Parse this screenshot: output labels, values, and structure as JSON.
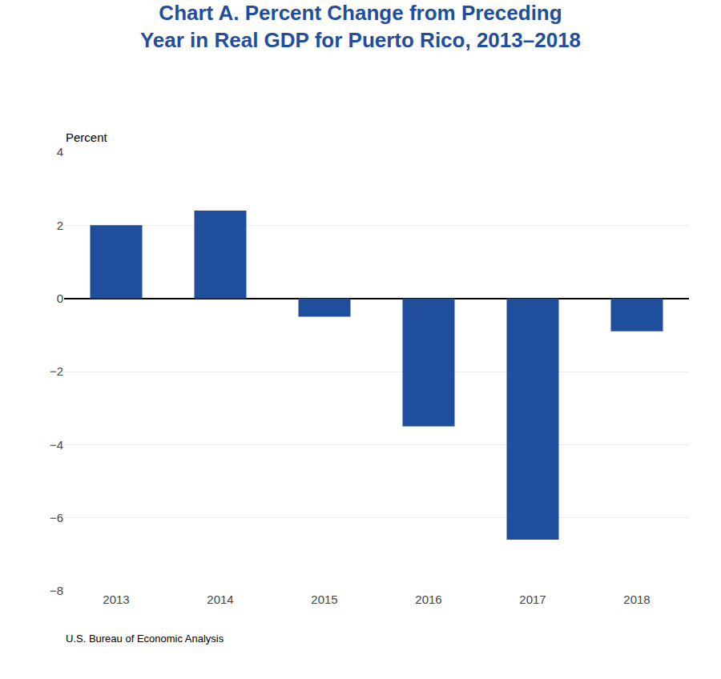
{
  "chart_data": {
    "type": "bar",
    "title": "Chart A. Percent Change from Preceding\nYear in Real GDP for Puerto Rico, 2013–2018",
    "ylabel": "Percent",
    "annotations": [
      "U.S. Bureau of Economic Analysis"
    ],
    "categories": [
      "2013",
      "2014",
      "2015",
      "2016",
      "2017",
      "2018"
    ],
    "values": [
      2.0,
      2.4,
      -0.5,
      -3.5,
      -6.6,
      -0.9
    ],
    "color": "#1f4e9c",
    "ylim": [
      -8,
      4
    ],
    "yticks": [
      {
        "value": -8,
        "label": "−8"
      },
      {
        "value": -6,
        "label": "−6"
      },
      {
        "value": -4,
        "label": "−4"
      },
      {
        "value": -2,
        "label": "−2"
      },
      0,
      2,
      4
    ],
    "grid": true
  }
}
